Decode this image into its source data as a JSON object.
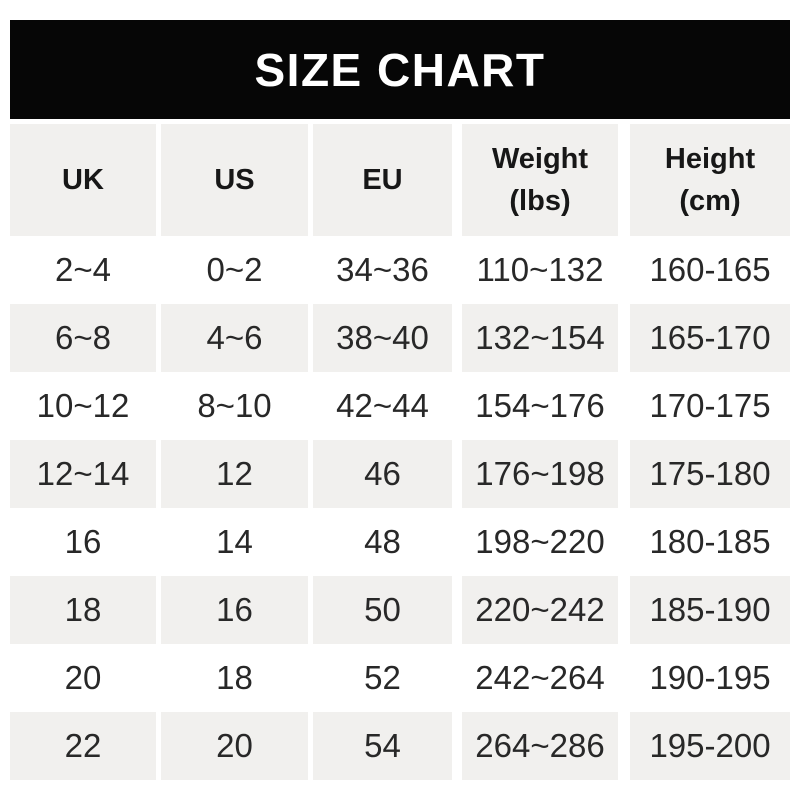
{
  "banner": {
    "title": "SIZE CHART"
  },
  "colors": {
    "banner_bg": "#060606",
    "banner_text": "#ffffff",
    "stripe": "#f1f0ee",
    "header_text": "#171717",
    "cell_text": "#282828"
  },
  "table": {
    "headers": [
      {
        "label": "UK",
        "unit": ""
      },
      {
        "label": "US",
        "unit": ""
      },
      {
        "label": "EU",
        "unit": ""
      },
      {
        "label": "Weight",
        "unit": "(lbs)"
      },
      {
        "label": "Height",
        "unit": "(cm)"
      }
    ],
    "rows": [
      [
        "2~4",
        "0~2",
        "34~36",
        "110~132",
        "160-165"
      ],
      [
        "6~8",
        "4~6",
        "38~40",
        "132~154",
        "165-170"
      ],
      [
        "10~12",
        "8~10",
        "42~44",
        "154~176",
        "170-175"
      ],
      [
        "12~14",
        "12",
        "46",
        "176~198",
        "175-180"
      ],
      [
        "16",
        "14",
        "48",
        "198~220",
        "180-185"
      ],
      [
        "18",
        "16",
        "50",
        "220~242",
        "185-190"
      ],
      [
        "20",
        "18",
        "52",
        "242~264",
        "190-195"
      ],
      [
        "22",
        "20",
        "54",
        "264~286",
        "195-200"
      ]
    ]
  },
  "chart_data": {
    "type": "table",
    "title": "SIZE CHART",
    "columns": [
      "UK",
      "US",
      "EU",
      "Weight (lbs)",
      "Height (cm)"
    ],
    "rows": [
      [
        "2~4",
        "0~2",
        "34~36",
        "110~132",
        "160-165"
      ],
      [
        "6~8",
        "4~6",
        "38~40",
        "132~154",
        "165-170"
      ],
      [
        "10~12",
        "8~10",
        "42~44",
        "154~176",
        "170-175"
      ],
      [
        "12~14",
        "12",
        "46",
        "176~198",
        "175-180"
      ],
      [
        "16",
        "14",
        "48",
        "198~220",
        "180-185"
      ],
      [
        "18",
        "16",
        "50",
        "220~242",
        "185-190"
      ],
      [
        "20",
        "18",
        "52",
        "242~264",
        "190-195"
      ],
      [
        "22",
        "20",
        "54",
        "264~286",
        "195-200"
      ]
    ]
  }
}
